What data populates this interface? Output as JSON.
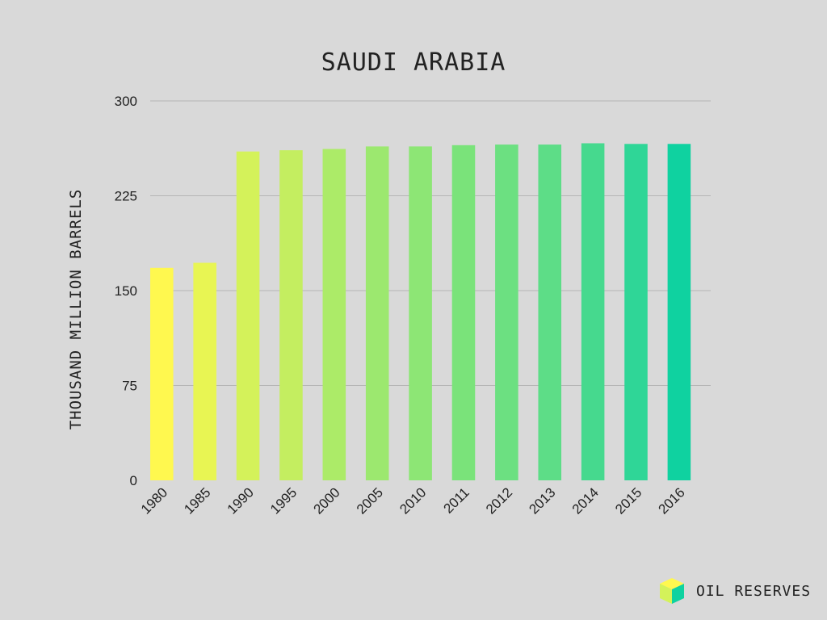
{
  "chart_data": {
    "type": "bar",
    "title": "SAUDI ARABIA",
    "xlabel": "",
    "ylabel": "THOUSAND MILLION BARRELS",
    "ylim": [
      0,
      300
    ],
    "yticks": [
      0,
      75,
      150,
      225,
      300
    ],
    "grid": true,
    "categories": [
      "1980",
      "1985",
      "1990",
      "1995",
      "2000",
      "2005",
      "2010",
      "2011",
      "2012",
      "2013",
      "2014",
      "2015",
      "2016"
    ],
    "values": [
      168,
      172,
      260,
      261,
      262,
      264,
      264,
      265,
      265.5,
      265.5,
      266.5,
      266,
      266
    ],
    "colors": [
      "#fff84f",
      "#e8f553",
      "#d4f25a",
      "#c4ee60",
      "#aceb68",
      "#9ce86f",
      "#8de675",
      "#7ae37a",
      "#6ce081",
      "#5ddd87",
      "#46d98e",
      "#2fd697",
      "#0fd2a0"
    ]
  },
  "brand": {
    "label": "OIL RESERVES",
    "icon": "cube-icon",
    "colors": {
      "top": "#fff84f",
      "left": "#d4f25a",
      "right": "#0fd2a0"
    }
  }
}
